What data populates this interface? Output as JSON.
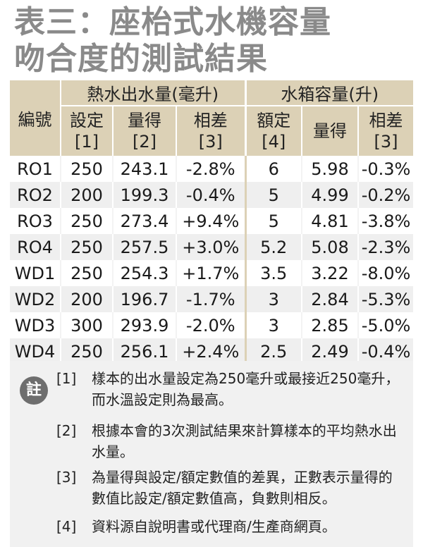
{
  "title": {
    "line1": "表三：座枱式水機容量",
    "line2": "吻合度的測試結果"
  },
  "table": {
    "col_id": "編號",
    "group_hot": "熱水出水量(毫升)",
    "group_tank": "水箱容量(升)",
    "sub": {
      "set": "設定",
      "set_ref": "[1]",
      "measured": "量得",
      "measured_ref": "[2]",
      "diff": "相差",
      "diff_ref": "[3]",
      "rated": "額定",
      "rated_ref": "[4]",
      "tank_measured": "量得",
      "tank_diff": "相差",
      "tank_diff_ref": "[3]"
    },
    "rows": [
      {
        "id": "RO1",
        "set": "250",
        "measured": "243.1",
        "diff": "-2.8%",
        "rated": "6",
        "tank_measured": "5.98",
        "tank_diff": "-0.3%"
      },
      {
        "id": "RO2",
        "set": "200",
        "measured": "199.3",
        "diff": "-0.4%",
        "rated": "5",
        "tank_measured": "4.99",
        "tank_diff": "-0.2%"
      },
      {
        "id": "RO3",
        "set": "250",
        "measured": "273.4",
        "diff": "+9.4%",
        "rated": "5",
        "tank_measured": "4.81",
        "tank_diff": "-3.8%"
      },
      {
        "id": "RO4",
        "set": "250",
        "measured": "257.5",
        "diff": "+3.0%",
        "rated": "5.2",
        "tank_measured": "5.08",
        "tank_diff": "-2.3%"
      },
      {
        "id": "WD1",
        "set": "250",
        "measured": "254.3",
        "diff": "+1.7%",
        "rated": "3.5",
        "tank_measured": "3.22",
        "tank_diff": "-8.0%"
      },
      {
        "id": "WD2",
        "set": "200",
        "measured": "196.7",
        "diff": "-1.7%",
        "rated": "3",
        "tank_measured": "2.84",
        "tank_diff": "-5.3%"
      },
      {
        "id": "WD3",
        "set": "300",
        "measured": "293.9",
        "diff": "-2.0%",
        "rated": "3",
        "tank_measured": "2.85",
        "tank_diff": "-5.0%"
      },
      {
        "id": "WD4",
        "set": "250",
        "measured": "256.1",
        "diff": "+2.4%",
        "rated": "2.5",
        "tank_measured": "2.49",
        "tank_diff": "-0.4%"
      }
    ]
  },
  "notes": {
    "badge": "註",
    "items": [
      {
        "num": "[1]",
        "text": "樣本的出水量設定為250毫升或最接近250毫升，而水溫設定則為最高。"
      },
      {
        "num": "[2]",
        "text": "根據本會的3次測試結果來計算樣本的平均熱水出水量。"
      },
      {
        "num": "[3]",
        "text": "為量得與設定/額定數值的差異，正數表示量得的數值比設定/額定數值高，負數則相反。"
      },
      {
        "num": "[4]",
        "text": "資料源自說明書或代理商/生產商網頁。"
      }
    ]
  }
}
